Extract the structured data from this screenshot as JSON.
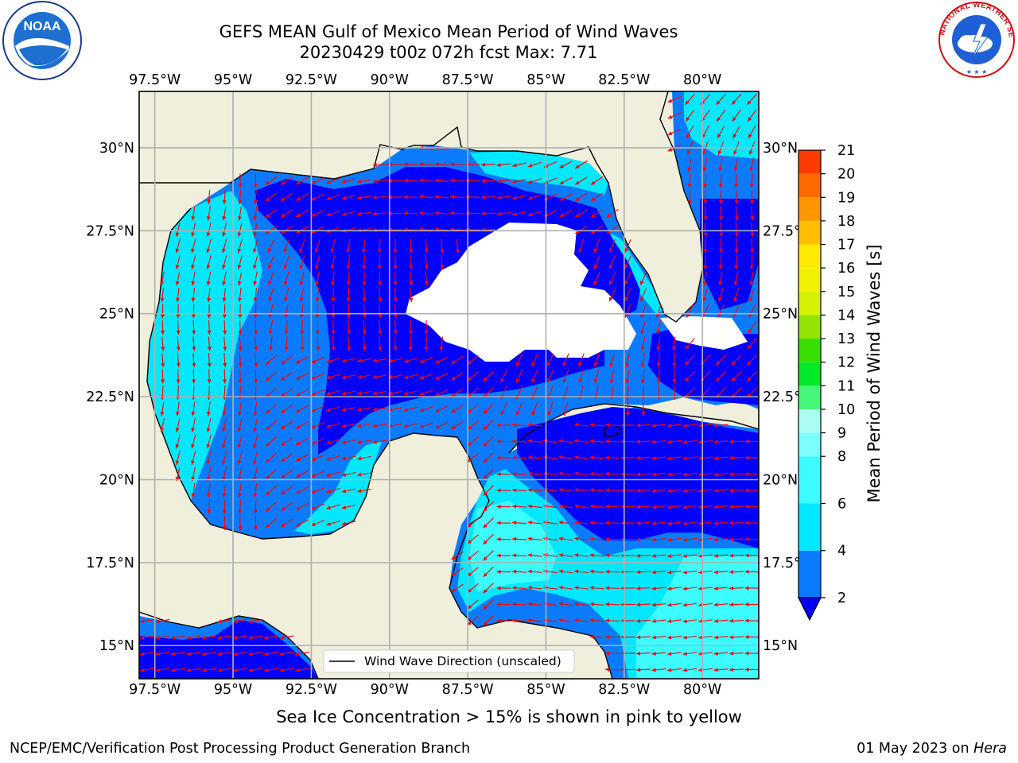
{
  "header": {
    "title_line1": "GEFS MEAN Gulf of Mexico Mean Period of Wind Waves",
    "title_line2": "20230429 t00z 072h fcst   Max: 7.71"
  },
  "logos": {
    "left": {
      "name": "noaa-logo",
      "text": "NOAA",
      "ring_text": "NATIONAL OCEANIC AND ATMOSPHERIC ADMINISTRATION · U.S. DEPARTMENT OF COMMERCE"
    },
    "right": {
      "name": "nws-logo",
      "ring_text": "NATIONAL WEATHER SERVICE"
    }
  },
  "map": {
    "lon_ticks": [
      "97.5°W",
      "95°W",
      "92.5°W",
      "90°W",
      "87.5°W",
      "85°W",
      "82.5°W",
      "80°W"
    ],
    "lon_values": [
      -97.5,
      -95,
      -92.5,
      -90,
      -87.5,
      -85,
      -82.5,
      -80
    ],
    "lat_ticks": [
      "15°N",
      "17.5°N",
      "20°N",
      "22.5°N",
      "25°N",
      "27.5°N",
      "30°N"
    ],
    "lat_values": [
      15,
      17.5,
      20,
      22.5,
      25,
      27.5,
      30
    ],
    "extent": {
      "lon_min": -98,
      "lon_max": -78.2,
      "lat_min": 14,
      "lat_max": 31.7
    },
    "legend_label": "Wind Wave Direction (unscaled)",
    "land_color": "#efefdc",
    "grid": true
  },
  "colorbar": {
    "label": "Mean Period of Wind Waves [s]",
    "ticks": [
      "2",
      "4",
      "6",
      "8",
      "9",
      "10",
      "11",
      "12",
      "13",
      "14",
      "15",
      "16",
      "17",
      "18",
      "19",
      "20",
      "21"
    ],
    "tick_values": [
      2,
      4,
      6,
      8,
      9,
      10,
      11,
      12,
      13,
      14,
      15,
      16,
      17,
      18,
      19,
      20,
      21
    ],
    "colors": [
      "#0a7bff",
      "#00e8ff",
      "#3cfcff",
      "#7dffff",
      "#aafff0",
      "#46f77a",
      "#00e82a",
      "#39df00",
      "#91e400",
      "#d4f200",
      "#f2f200",
      "#ffea00",
      "#ffbf00",
      "#ff9600",
      "#ff6a00",
      "#ff3a00",
      "#ff0000"
    ],
    "extend_color": "#0000ff"
  },
  "footer": {
    "subtitle": "Sea Ice Concentration > 15% is shown in pink to yellow",
    "left": "NCEP/EMC/Verification Post Processing Product Generation Branch",
    "date": "01 May 2023 on ",
    "host": "Hera"
  }
}
